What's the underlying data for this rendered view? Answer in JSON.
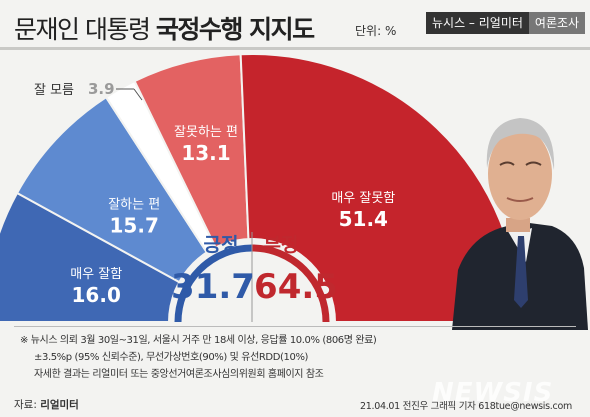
{
  "header": {
    "title_normal": "문재인 대통령 ",
    "title_bold": "국정수행 지지도",
    "unit": "단위: %",
    "brand_part1": "뉴시스 – 리얼미터",
    "brand_part2": "여론조사"
  },
  "chart_data": {
    "type": "pie",
    "title": "문재인 대통령 국정수행 지지도",
    "unit": "%",
    "slices": [
      {
        "label": "매우 잘함",
        "value": 16.0,
        "color": "#3f68b4"
      },
      {
        "label": "잘하는 편",
        "value": 15.7,
        "color": "#5e8ad0"
      },
      {
        "label": "잘 모름",
        "value": 3.9,
        "color": "#ffffff"
      },
      {
        "label": "잘못하는 편",
        "value": 13.1,
        "color": "#e36262"
      },
      {
        "label": "매우 잘못함",
        "value": 51.4,
        "color": "#c5242c"
      }
    ],
    "summary": {
      "positive_label": "긍정",
      "positive_value": 31.7,
      "negative_label": "부정",
      "negative_value": 64.5,
      "positive_color": "#2f5aa8",
      "negative_color": "#c0282e"
    }
  },
  "footer": {
    "notes": [
      "※ 뉴시스 의뢰 3월 30일~31일, 서울시 거주 만 18세 이상, 응답률 10.0% (806명 완료)",
      "±3.5%p (95% 신뢰수준), 무선가상번호(90%) 및 유선RDD(10%)",
      "자세한 결과는 리얼미터 또는 중앙선거여론조사심의위원회 홈페이지 참조"
    ],
    "source_label": "자료: ",
    "source_name": "리얼미터",
    "credit": "21.04.01 전진우 그래픽 기자 618tue@newsis.com",
    "watermark": "NEWSIS"
  }
}
